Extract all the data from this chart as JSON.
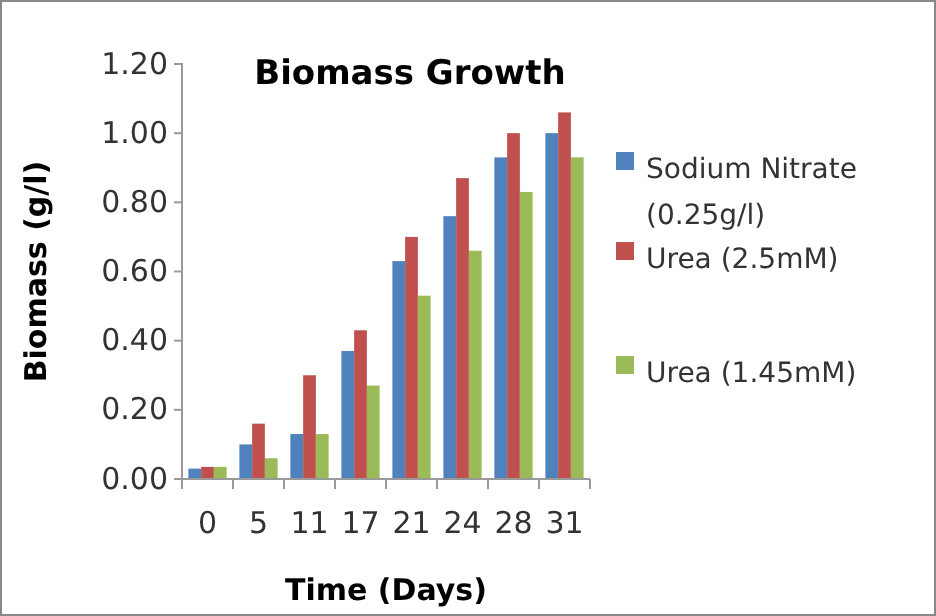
{
  "chart_data": {
    "type": "bar",
    "title": "Biomass Growth",
    "xlabel": "Time (Days)",
    "ylabel": "Biomass (g/l)",
    "categories": [
      "0",
      "5",
      "11",
      "17",
      "21",
      "24",
      "28",
      "31"
    ],
    "series": [
      {
        "name": "Sodium Nitrate (0.25g/l)",
        "color": "#4f81bd",
        "values": [
          0.03,
          0.1,
          0.13,
          0.37,
          0.63,
          0.76,
          0.93,
          1.0
        ]
      },
      {
        "name": "Urea (2.5mM)",
        "color": "#c0504d",
        "values": [
          0.035,
          0.16,
          0.3,
          0.43,
          0.7,
          0.87,
          1.0,
          1.06
        ]
      },
      {
        "name": "Urea (1.45mM)",
        "color": "#9bbb59",
        "values": [
          0.035,
          0.06,
          0.13,
          0.27,
          0.53,
          0.66,
          0.83,
          0.93
        ]
      }
    ],
    "ylim": [
      0,
      1.2
    ],
    "yticks": [
      {
        "value": 0,
        "label": "0.00"
      },
      {
        "value": 0.2,
        "label": "0.20"
      },
      {
        "value": 0.4,
        "label": "0.40"
      },
      {
        "value": 0.6,
        "label": "0.60"
      },
      {
        "value": 0.8,
        "label": "0.80"
      },
      {
        "value": 1,
        "label": "1.00"
      },
      {
        "value": 1.2,
        "label": "1.20"
      }
    ],
    "grid": false,
    "legend": "right"
  }
}
